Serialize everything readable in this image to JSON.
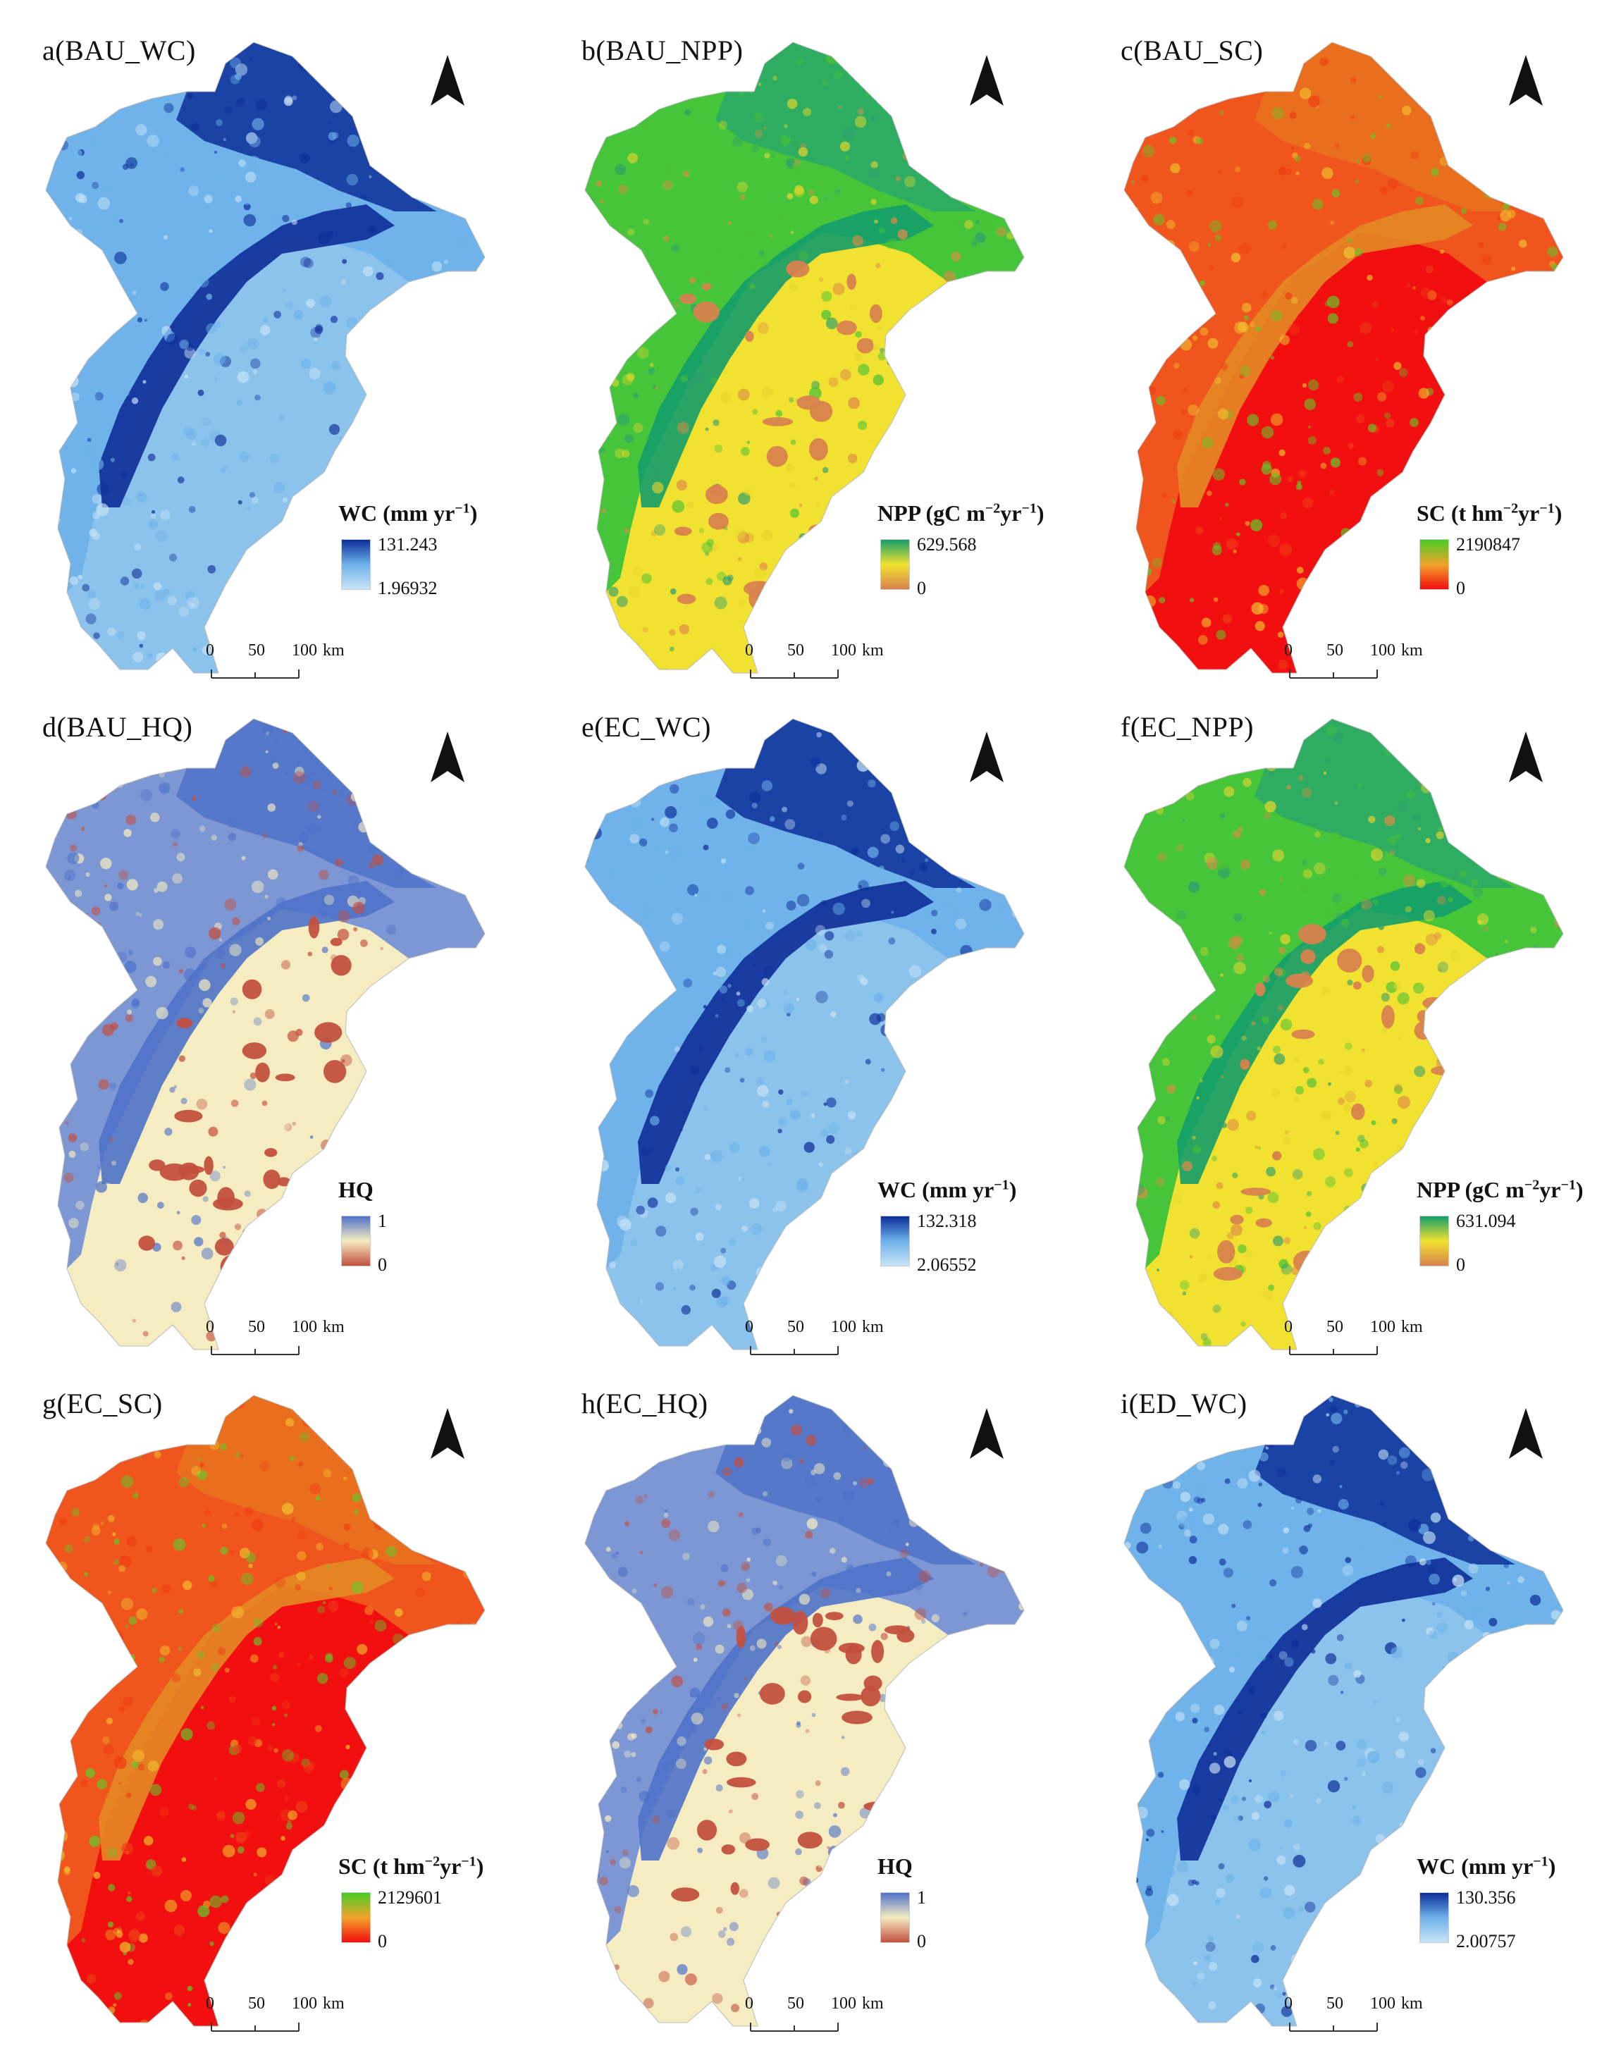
{
  "north_label": "N",
  "scalebar": {
    "labels": [
      "0",
      "50",
      "100"
    ],
    "unit": "km"
  },
  "palettes": {
    "WC": {
      "low": "#c7e3f6",
      "mid": "#6eb2ea",
      "high": "#0d2e99",
      "base": "#8cc3ec"
    },
    "NPP": {
      "low": "#d8824e",
      "mid": "#f1e231",
      "high": "#149d6b",
      "base": "#e3c82a"
    },
    "SC": {
      "low": "#f10f0f",
      "mid": "#f2a32a",
      "high": "#46cc26",
      "base": "#f01a12"
    },
    "HQ": {
      "low": "#c3503f",
      "mid": "#f5ecc2",
      "high": "#4f72c9",
      "base": "#f3e6bd"
    }
  },
  "panels": [
    {
      "title": "a(BAU_WC)",
      "var": "WC",
      "legend_title": "WC (mm yr",
      "legend_sup": "−1",
      "legend_suffix": ")",
      "max": "131.243",
      "min": "1.96932"
    },
    {
      "title": "b(BAU_NPP)",
      "var": "NPP",
      "legend_title": "NPP (gC m",
      "legend_sup": "−2",
      "legend_mid": "yr",
      "legend_sup2": "−1",
      "legend_suffix": ")",
      "max": "629.568",
      "min": "0"
    },
    {
      "title": "c(BAU_SC)",
      "var": "SC",
      "legend_title": "SC (t hm",
      "legend_sup": "−2",
      "legend_mid": "yr",
      "legend_sup2": "−1",
      "legend_suffix": ")",
      "max": "2190847",
      "min": "0"
    },
    {
      "title": "d(BAU_HQ)",
      "var": "HQ",
      "legend_title": "HQ",
      "max": "1",
      "min": "0"
    },
    {
      "title": "e(EC_WC)",
      "var": "WC",
      "legend_title": "WC (mm yr",
      "legend_sup": "−1",
      "legend_suffix": ")",
      "max": "132.318",
      "min": "2.06552"
    },
    {
      "title": "f(EC_NPP)",
      "var": "NPP",
      "legend_title": "NPP (gC m",
      "legend_sup": "−2",
      "legend_mid": "yr",
      "legend_sup2": "−1",
      "legend_suffix": ")",
      "max": "631.094",
      "min": "0"
    },
    {
      "title": "g(EC_SC)",
      "var": "SC",
      "legend_title": "SC (t hm",
      "legend_sup": "−2",
      "legend_mid": "yr",
      "legend_sup2": "−1",
      "legend_suffix": ")",
      "max": "2129601",
      "min": "0"
    },
    {
      "title": "h(EC_HQ)",
      "var": "HQ",
      "legend_title": "HQ",
      "max": "1",
      "min": "0"
    },
    {
      "title": "i(ED_WC)",
      "var": "WC",
      "legend_title": "WC (mm yr",
      "legend_sup": "−1",
      "legend_suffix": ")",
      "max": "130.356",
      "min": "2.00757"
    }
  ]
}
